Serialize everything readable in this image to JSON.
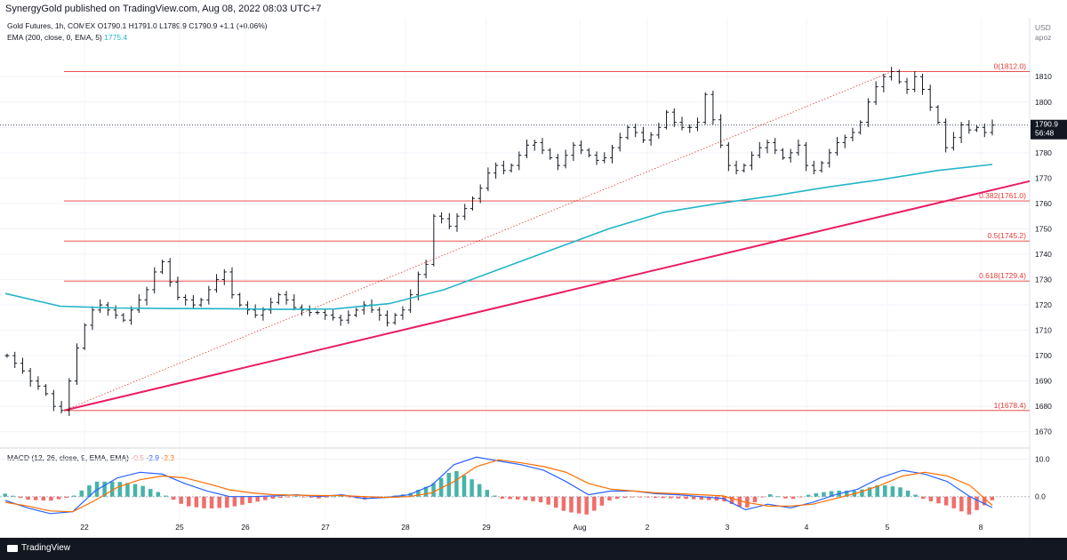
{
  "header": {
    "publish_text": "SynergyGold published on TradingView.com, Aug 08, 2022 08:03 UTC+7",
    "symbol": "Gold Futures, 1h, COMEX",
    "ohlc": {
      "o_label": "O",
      "o": "1790.1",
      "h_label": "H",
      "h": "1791.0",
      "l_label": "L",
      "l": "1789.9",
      "c_label": "C",
      "c": "1790.9",
      "change": "+1.1 (+0.06%)"
    },
    "ema_label": "EMA (200, close, 0, EMA, 5)",
    "ema_value": "1775.4",
    "macd_label": "MACD (12, 26, close, 9, EMA, EMA)",
    "macd_hist": "-0.5",
    "macd_line": "-2.9",
    "macd_signal": "-2.3",
    "currency": "USD",
    "scale_mode": "apoz"
  },
  "price_tag": {
    "price": "1790.9",
    "countdown": "56:48"
  },
  "footer": {
    "brand": "TradingView"
  },
  "colors": {
    "ema": "#22b5c7",
    "trendline": "#e91e63",
    "fib": "#e53935",
    "up": "#131722",
    "macd": "#2962ff",
    "signal": "#ff6d00",
    "hist_up": "#26a69a",
    "hist_down": "#ef5350"
  },
  "chart_data": [
    {
      "type": "ohlc",
      "interval": "1h",
      "ylim": [
        1665,
        1822
      ],
      "y_ticks": [
        1670,
        1680,
        1690,
        1700,
        1710,
        1720,
        1730,
        1740,
        1750,
        1760,
        1770,
        1780,
        1790,
        1800,
        1810
      ],
      "x_ticks": [
        "22",
        "25",
        "26",
        "27",
        "28",
        "29",
        "Aug",
        "2",
        "3",
        "4",
        "5",
        "8"
      ],
      "last_price": 1790.9,
      "fib_levels": [
        {
          "label": "0(1812.0)",
          "value": 1812.0
        },
        {
          "label": "0.382(1761.0)",
          "value": 1761.0
        },
        {
          "label": "0.5(1745.2)",
          "value": 1745.2
        },
        {
          "label": "0.618(1729.4)",
          "value": 1729.4
        },
        {
          "label": "1(1678.4)",
          "value": 1678.4
        }
      ],
      "close_path": [
        1700,
        1697,
        1694,
        1690,
        1688,
        1685,
        1680,
        1678.4,
        1690,
        1703,
        1712,
        1718,
        1720,
        1718,
        1716,
        1714,
        1718,
        1722,
        1726,
        1733,
        1737,
        1729,
        1723,
        1722,
        1720,
        1722,
        1726,
        1730,
        1733,
        1724,
        1720,
        1718,
        1716,
        1718,
        1721,
        1724,
        1722,
        1719,
        1718,
        1717,
        1717,
        1716,
        1715,
        1714,
        1716,
        1718,
        1720,
        1718,
        1716,
        1713,
        1716,
        1718,
        1724,
        1732,
        1736,
        1755,
        1754,
        1751,
        1755,
        1758,
        1762,
        1766,
        1772,
        1775,
        1773,
        1775,
        1779,
        1783,
        1784,
        1781,
        1778,
        1775,
        1779,
        1783,
        1781,
        1779,
        1777,
        1778,
        1782,
        1786,
        1790,
        1788,
        1785,
        1787,
        1790,
        1796,
        1792,
        1790,
        1790,
        1792,
        1803,
        1793,
        1783,
        1775,
        1773,
        1775,
        1779,
        1782,
        1784,
        1781,
        1778,
        1780,
        1783,
        1775,
        1773,
        1776,
        1780,
        1784,
        1786,
        1788,
        1792,
        1800,
        1806,
        1810,
        1812,
        1808,
        1805,
        1810,
        1805,
        1798,
        1792,
        1782,
        1786,
        1791,
        1789,
        1790,
        1788,
        1790.9
      ],
      "ema": [
        1724.5,
        1719.5,
        1718.8,
        1718.6,
        1718.5,
        1718.3,
        1718.4,
        1720.5,
        1726.0,
        1734.0,
        1742.0,
        1750.0,
        1756.5,
        1760.0,
        1763.0,
        1766.5,
        1769.5,
        1773.0,
        1775.4
      ]
    },
    {
      "type": "macd",
      "ylim": [
        -5.5,
        12
      ],
      "y_ticks": [
        0.0,
        10.0
      ],
      "macd": [
        -1.0,
        -3.0,
        -4.5,
        -4.0,
        1.5,
        5.0,
        6.5,
        6.0,
        3.5,
        1.5,
        0.0,
        0.0,
        0.2,
        0.5,
        0.0,
        0.5,
        -0.5,
        -0.2,
        0.5,
        3.0,
        8.5,
        10.5,
        9.5,
        8.5,
        7.0,
        4.0,
        0.5,
        1.5,
        1.5,
        0.8,
        0.5,
        0.0,
        -0.5,
        -3.5,
        -2.0,
        -3.0,
        -1.5,
        0.5,
        2.0,
        5.0,
        7.0,
        6.0,
        4.0,
        0.0,
        -2.9
      ],
      "signal": [
        -1.5,
        -2.5,
        -3.8,
        -4.0,
        -1.0,
        2.5,
        4.5,
        5.5,
        5.0,
        3.5,
        1.8,
        1.0,
        0.5,
        0.4,
        0.3,
        0.3,
        0.0,
        -0.2,
        0.0,
        1.0,
        4.0,
        8.0,
        9.8,
        9.0,
        8.0,
        6.5,
        3.5,
        2.0,
        1.5,
        1.0,
        0.8,
        0.5,
        0.2,
        -1.5,
        -2.5,
        -2.5,
        -2.0,
        -0.5,
        1.0,
        3.0,
        5.5,
        6.5,
        5.5,
        3.0,
        -2.3
      ]
    }
  ]
}
